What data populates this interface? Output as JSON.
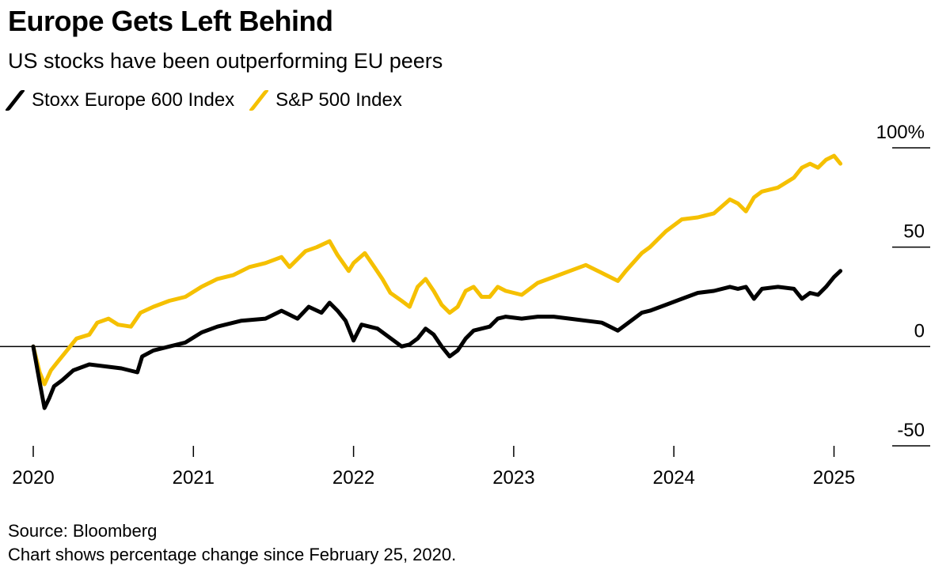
{
  "title": "Europe Gets Left Behind",
  "subtitle": "US stocks have been outperforming EU peers",
  "colors": {
    "stoxx": "#000000",
    "sp500": "#f5c000",
    "axis": "#000000"
  },
  "footer": {
    "source": "Source: Bloomberg",
    "note": "Chart shows percentage change since February 25, 2020."
  },
  "chart_data": {
    "type": "line",
    "title": "Europe Gets Left Behind",
    "subtitle": "US stocks have been outperforming EU peers",
    "xlabel": "",
    "ylabel": "",
    "xlim": [
      2020.15,
      2025.3
    ],
    "ylim": [
      -50,
      100
    ],
    "legend_position": "top-left",
    "y_ticks": [
      {
        "value": 100,
        "label": "100%"
      },
      {
        "value": 50,
        "label": "50"
      },
      {
        "value": 0,
        "label": "0"
      },
      {
        "value": -50,
        "label": "-50"
      }
    ],
    "x_ticks": [
      {
        "value": 2020.0,
        "label": "2020"
      },
      {
        "value": 2021.0,
        "label": "2021"
      },
      {
        "value": 2022.0,
        "label": "2022"
      },
      {
        "value": 2023.0,
        "label": "2023"
      },
      {
        "value": 2024.0,
        "label": "2024"
      },
      {
        "value": 2025.0,
        "label": "2025"
      }
    ],
    "series": [
      {
        "name": "Stoxx Europe 600 Index",
        "color": "#000000",
        "points": [
          [
            2020.15,
            0
          ],
          [
            2020.19,
            -18
          ],
          [
            2020.22,
            -31
          ],
          [
            2020.25,
            -26
          ],
          [
            2020.28,
            -20
          ],
          [
            2020.33,
            -17
          ],
          [
            2020.4,
            -12
          ],
          [
            2020.5,
            -9
          ],
          [
            2020.6,
            -10
          ],
          [
            2020.7,
            -11
          ],
          [
            2020.8,
            -13
          ],
          [
            2020.83,
            -5
          ],
          [
            2020.9,
            -2
          ],
          [
            2021.0,
            0
          ],
          [
            2021.1,
            2
          ],
          [
            2021.2,
            7
          ],
          [
            2021.3,
            10
          ],
          [
            2021.45,
            13
          ],
          [
            2021.6,
            14
          ],
          [
            2021.7,
            18
          ],
          [
            2021.8,
            14
          ],
          [
            2021.87,
            20
          ],
          [
            2021.95,
            17
          ],
          [
            2022.0,
            22
          ],
          [
            2022.05,
            18
          ],
          [
            2022.1,
            13
          ],
          [
            2022.15,
            3
          ],
          [
            2022.2,
            11
          ],
          [
            2022.3,
            9
          ],
          [
            2022.4,
            3
          ],
          [
            2022.45,
            0
          ],
          [
            2022.5,
            1
          ],
          [
            2022.55,
            4
          ],
          [
            2022.6,
            9
          ],
          [
            2022.65,
            6
          ],
          [
            2022.7,
            0
          ],
          [
            2022.75,
            -5
          ],
          [
            2022.8,
            -2
          ],
          [
            2022.85,
            4
          ],
          [
            2022.9,
            8
          ],
          [
            2023.0,
            10
          ],
          [
            2023.05,
            14
          ],
          [
            2023.1,
            15
          ],
          [
            2023.2,
            14
          ],
          [
            2023.3,
            15
          ],
          [
            2023.4,
            15
          ],
          [
            2023.5,
            14
          ],
          [
            2023.6,
            13
          ],
          [
            2023.7,
            12
          ],
          [
            2023.8,
            8
          ],
          [
            2023.85,
            11
          ],
          [
            2023.95,
            17
          ],
          [
            2024.0,
            18
          ],
          [
            2024.1,
            21
          ],
          [
            2024.2,
            24
          ],
          [
            2024.3,
            27
          ],
          [
            2024.4,
            28
          ],
          [
            2024.5,
            30
          ],
          [
            2024.55,
            29
          ],
          [
            2024.6,
            30
          ],
          [
            2024.65,
            24
          ],
          [
            2024.7,
            29
          ],
          [
            2024.8,
            30
          ],
          [
            2024.9,
            29
          ],
          [
            2024.95,
            24
          ],
          [
            2025.0,
            27
          ],
          [
            2025.05,
            26
          ],
          [
            2025.1,
            30
          ],
          [
            2025.15,
            35
          ],
          [
            2025.19,
            38
          ]
        ]
      },
      {
        "name": "S&P 500 Index",
        "color": "#f5c000",
        "points": [
          [
            2020.15,
            0
          ],
          [
            2020.19,
            -13
          ],
          [
            2020.22,
            -19
          ],
          [
            2020.26,
            -12
          ],
          [
            2020.3,
            -8
          ],
          [
            2020.36,
            -2
          ],
          [
            2020.42,
            4
          ],
          [
            2020.5,
            6
          ],
          [
            2020.55,
            12
          ],
          [
            2020.62,
            14
          ],
          [
            2020.68,
            11
          ],
          [
            2020.76,
            10
          ],
          [
            2020.82,
            17
          ],
          [
            2020.9,
            20
          ],
          [
            2021.0,
            23
          ],
          [
            2021.1,
            25
          ],
          [
            2021.2,
            30
          ],
          [
            2021.3,
            34
          ],
          [
            2021.4,
            36
          ],
          [
            2021.5,
            40
          ],
          [
            2021.6,
            42
          ],
          [
            2021.7,
            45
          ],
          [
            2021.75,
            40
          ],
          [
            2021.85,
            48
          ],
          [
            2021.92,
            50
          ],
          [
            2022.0,
            53
          ],
          [
            2022.05,
            46
          ],
          [
            2022.12,
            38
          ],
          [
            2022.15,
            42
          ],
          [
            2022.22,
            47
          ],
          [
            2022.28,
            40
          ],
          [
            2022.33,
            34
          ],
          [
            2022.38,
            27
          ],
          [
            2022.45,
            23
          ],
          [
            2022.5,
            20
          ],
          [
            2022.55,
            30
          ],
          [
            2022.6,
            34
          ],
          [
            2022.65,
            28
          ],
          [
            2022.7,
            21
          ],
          [
            2022.75,
            17
          ],
          [
            2022.8,
            20
          ],
          [
            2022.85,
            28
          ],
          [
            2022.9,
            30
          ],
          [
            2022.95,
            25
          ],
          [
            2023.0,
            25
          ],
          [
            2023.05,
            30
          ],
          [
            2023.1,
            28
          ],
          [
            2023.2,
            26
          ],
          [
            2023.3,
            32
          ],
          [
            2023.4,
            35
          ],
          [
            2023.5,
            38
          ],
          [
            2023.6,
            41
          ],
          [
            2023.7,
            37
          ],
          [
            2023.8,
            33
          ],
          [
            2023.85,
            38
          ],
          [
            2023.95,
            47
          ],
          [
            2024.0,
            50
          ],
          [
            2024.1,
            58
          ],
          [
            2024.2,
            64
          ],
          [
            2024.3,
            65
          ],
          [
            2024.4,
            67
          ],
          [
            2024.5,
            74
          ],
          [
            2024.55,
            72
          ],
          [
            2024.6,
            68
          ],
          [
            2024.65,
            75
          ],
          [
            2024.7,
            78
          ],
          [
            2024.8,
            80
          ],
          [
            2024.9,
            85
          ],
          [
            2024.95,
            90
          ],
          [
            2025.0,
            92
          ],
          [
            2025.05,
            90
          ],
          [
            2025.1,
            94
          ],
          [
            2025.15,
            96
          ],
          [
            2025.19,
            92
          ]
        ]
      }
    ]
  }
}
